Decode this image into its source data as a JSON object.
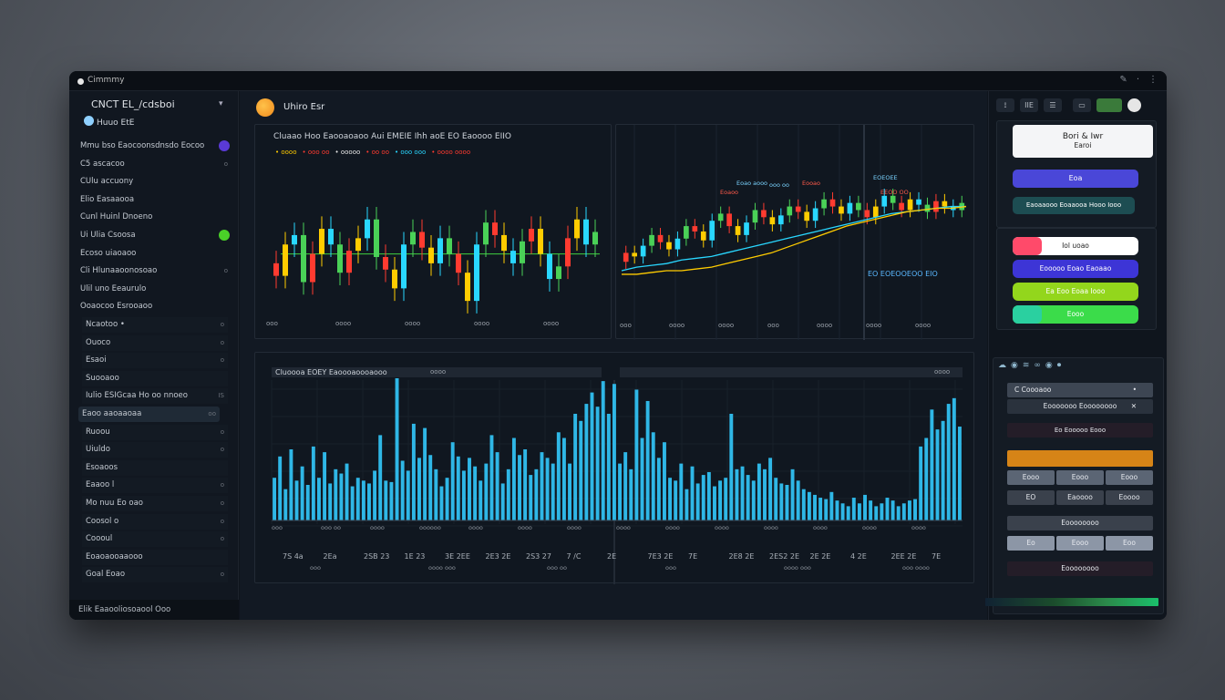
{
  "window": {
    "title": "Cimmmy"
  },
  "titlebar": {
    "icons": [
      "pen-icon",
      "dot-icon",
      "more-icon"
    ]
  },
  "sidebar": {
    "heading": "CNCT EL_/cdsboi",
    "subheading": "Huuo EtE",
    "menu_mark": "▾",
    "items": [
      {
        "label": "Mmu bso Eaocoonsdnsdo Eocoo",
        "mark": ""
      },
      {
        "label": "C5  ascacoo",
        "mark": "o"
      },
      {
        "label": "CUlu accuony",
        "mark": ""
      },
      {
        "label": "Elio Easaaooa",
        "mark": ""
      },
      {
        "label": "Cunl Huinl Dnoeno",
        "mark": ""
      },
      {
        "label": "Ui  Ulia Csoosa",
        "mark": "o"
      },
      {
        "label": "Ecoso uiaoaoo",
        "mark": ""
      },
      {
        "label": "Cli Hlunaaoonosoao",
        "mark": "o"
      },
      {
        "label": "Ulil uno Eeaurulo",
        "mark": ""
      },
      {
        "label": "Ooaocoo Esrooaoo",
        "mark": ""
      },
      {
        "label": "Ncaotoo  •",
        "mark": "o"
      },
      {
        "label": "Ouoco",
        "mark": "o"
      },
      {
        "label": "Esaoi",
        "mark": "o"
      },
      {
        "label": "Suooaoo",
        "mark": ""
      },
      {
        "label": "Iulio ESIGcaa  Ho oo  nnoeo",
        "mark": "IS"
      },
      {
        "label": "Eaoo  aaoaaoaa",
        "mark": "oo"
      },
      {
        "label": "Ruoou",
        "mark": "o"
      },
      {
        "label": "Uiuldo",
        "mark": "o"
      },
      {
        "label": "Esoaoos",
        "mark": ""
      },
      {
        "label": "Eaaoo  l",
        "mark": "o"
      },
      {
        "label": "Mo  nuu  Eo oao",
        "mark": "o"
      },
      {
        "label": "Coosol  o",
        "mark": "o"
      },
      {
        "label": "Coooul",
        "mark": "o"
      },
      {
        "label": "Eoaoaooaaooo",
        "mark": ""
      },
      {
        "label": "Goal Eoao",
        "mark": "o"
      }
    ],
    "footer": "Elik Eaaooliosoaool Ooo"
  },
  "main": {
    "title": "Uhiro  Esr",
    "top_left": {
      "title": "Cluaao Hoo Eaooaoaoo Aui EMEIE Ihh aoE EO  Eaoooo EIIO",
      "legend": [
        "• oooo",
        "• ooo oo",
        "• ooooo",
        "• oo oo",
        "• ooo  ooo",
        "• oooo oooo"
      ],
      "x_labels": [
        "ooo",
        "oooo",
        "oooo",
        "oooo",
        "oooo"
      ],
      "chart_data": {
        "type": "candlestick",
        "series": [
          {
            "name": "price",
            "open": [
              52,
              48,
              58,
              61,
              46,
              55,
              63,
              58,
              49,
              56,
              60,
              66,
              54,
              50,
              44,
              58,
              62,
              57,
              52,
              60,
              55,
              49,
              40,
              58,
              65,
              61,
              56,
              52,
              59,
              63,
              55,
              47,
              51,
              60,
              66,
              58
            ],
            "close": [
              48,
              58,
              61,
              46,
              55,
              63,
              58,
              49,
              56,
              60,
              66,
              54,
              50,
              44,
              58,
              62,
              57,
              52,
              60,
              55,
              49,
              40,
              58,
              65,
              61,
              56,
              52,
              59,
              63,
              55,
              47,
              51,
              60,
              66,
              58,
              62
            ]
          }
        ],
        "reference_line": 55,
        "colors": [
          "#ff3b30",
          "#ffcc00",
          "#29d7ff",
          "#4ad157"
        ]
      }
    },
    "top_right": {
      "labels": [
        "Eoao aooo",
        "Eoaoo",
        "ooo oo",
        "Eooao",
        "EOEOEE",
        "EEOO OO"
      ],
      "annotation": "EO EOEOOEOO  EIO",
      "x_labels": [
        "ooo",
        "oooo",
        "oooo",
        "ooo",
        "oooo",
        "oooo",
        "oooo"
      ],
      "chart_data": {
        "type": "candlestick",
        "series": [
          {
            "name": "price",
            "open": [
              35,
              40,
              38,
              44,
              50,
              46,
              42,
              48,
              55,
              52,
              47,
              58,
              62,
              55,
              50,
              57,
              64,
              60,
              56,
              61,
              66,
              63,
              58,
              65,
              70,
              66,
              62,
              68,
              64,
              60,
              66,
              72,
              68,
              64,
              70,
              67,
              63,
              69,
              66,
              64
            ],
            "close": [
              40,
              38,
              44,
              50,
              46,
              42,
              48,
              55,
              52,
              47,
              58,
              62,
              55,
              50,
              57,
              64,
              60,
              56,
              61,
              66,
              63,
              58,
              65,
              70,
              66,
              62,
              68,
              64,
              60,
              66,
              72,
              68,
              64,
              70,
              67,
              63,
              69,
              66,
              64,
              68
            ]
          }
        ],
        "moving_averages": [
          [
            30,
            32,
            33,
            34,
            36,
            37,
            38,
            40,
            42,
            44,
            46,
            48,
            50,
            52,
            54,
            56,
            58,
            60,
            62,
            63,
            64,
            65,
            66,
            66
          ],
          [
            28,
            28,
            29,
            30,
            30,
            31,
            32,
            34,
            36,
            38,
            40,
            43,
            46,
            49,
            52,
            55,
            57,
            59,
            61,
            63,
            64,
            65,
            65,
            66
          ]
        ],
        "colors": [
          "#ff3b30",
          "#ffcc00",
          "#29d7ff",
          "#4ad157"
        ]
      }
    },
    "bottom": {
      "title": "Cluoooa  EOEY  Eaoooaoooaooo",
      "title2": "oooo",
      "right_label": "oooo",
      "x_labels": [
        "ooo",
        "ooo oo",
        "oooo",
        "oooooo",
        "oooo",
        "oooo",
        "oooo",
        "oooo",
        "oooo",
        "oooo",
        "oooo",
        "oooo",
        "oooo",
        "oooo"
      ],
      "value_labels": [
        "7S 4a",
        "2Ea",
        "2SB 23",
        "1E 23",
        "3E  2EE",
        "2E3 2E",
        "2S3 27",
        "7 /C",
        "2E",
        "7E3 2E",
        "7E",
        "2E8 2E",
        "2ES2 2E",
        "2E 2E",
        "4 2E",
        "2EE 2E",
        "7E"
      ],
      "sub_labels": [
        "ooo",
        "oooo ooo",
        "ooo oo",
        "ooo",
        "oooo ooo",
        "ooo oooo"
      ],
      "chart_data": {
        "type": "bar",
        "values": [
          30,
          45,
          22,
          50,
          28,
          38,
          25,
          52,
          30,
          48,
          26,
          36,
          33,
          40,
          24,
          30,
          28,
          26,
          35,
          60,
          28,
          27,
          100,
          42,
          35,
          68,
          44,
          65,
          46,
          36,
          24,
          30,
          55,
          45,
          35,
          44,
          38,
          28,
          40,
          60,
          48,
          26,
          36,
          58,
          46,
          50,
          32,
          36,
          48,
          44,
          40,
          62,
          58,
          40,
          75,
          70,
          82,
          90,
          80,
          98,
          75,
          96,
          40,
          48,
          36,
          92,
          58,
          84,
          62,
          44,
          55,
          30,
          28,
          40,
          22,
          38,
          26,
          32,
          34,
          24,
          28,
          30,
          75,
          36,
          38,
          32,
          28,
          40,
          36,
          44,
          30,
          26,
          25,
          36,
          28,
          22,
          20,
          18,
          16,
          15,
          20,
          14,
          12,
          10,
          16,
          12,
          18,
          14,
          10,
          12,
          16,
          14,
          10,
          12,
          14,
          15,
          52,
          58,
          78,
          64,
          70,
          82,
          86,
          66
        ],
        "color": "#2fb7e6"
      }
    }
  },
  "right_panel": {
    "icons": [
      "IIE",
      "☰",
      "▭"
    ],
    "card_top": {
      "title": "Bori  &  Iwr",
      "subtitle": "Earoi"
    },
    "btn_blue": "Eoa",
    "btn_teal": "Eaoaaooo Eoaaooa  Hooo  Iooo",
    "chips": [
      {
        "label": "Iol  uoao",
        "color": "#ffffff"
      },
      {
        "label": "Eooooo  Eoao Eaoaao",
        "color": "#3d35d6"
      },
      {
        "label": "Ea  Eoo  Eoaa  Iooo",
        "color": "#93d61c"
      },
      {
        "label": "Eooo",
        "color": "#3bdc4a"
      }
    ],
    "toolbar_icons": [
      "cloud-icon",
      "circle-icon",
      "wave-icon",
      "link-icon",
      "circle-icon",
      "record-icon"
    ],
    "selects": [
      {
        "label": "C  Coooaoo",
        "mark": "•"
      },
      {
        "label": "Eooooooo  Eoooooooo",
        "mark": "✕"
      }
    ],
    "section": "Eo  Eooooo Eooo",
    "seg_row1": [
      "Eooo",
      "Eooo",
      "Eooo"
    ],
    "seg_row2": [
      "EO",
      "Eaoooo",
      "Eoooo"
    ],
    "field": "Eoooooooo",
    "seg_row3": [
      "Eo",
      "Eooo",
      "Eoo"
    ],
    "footer_btn": "Eoooooooo",
    "colors": {
      "orange": "#d68417",
      "blue": "#4a47d8",
      "teal": "#1d4d52",
      "slate": "#5b6574"
    }
  }
}
